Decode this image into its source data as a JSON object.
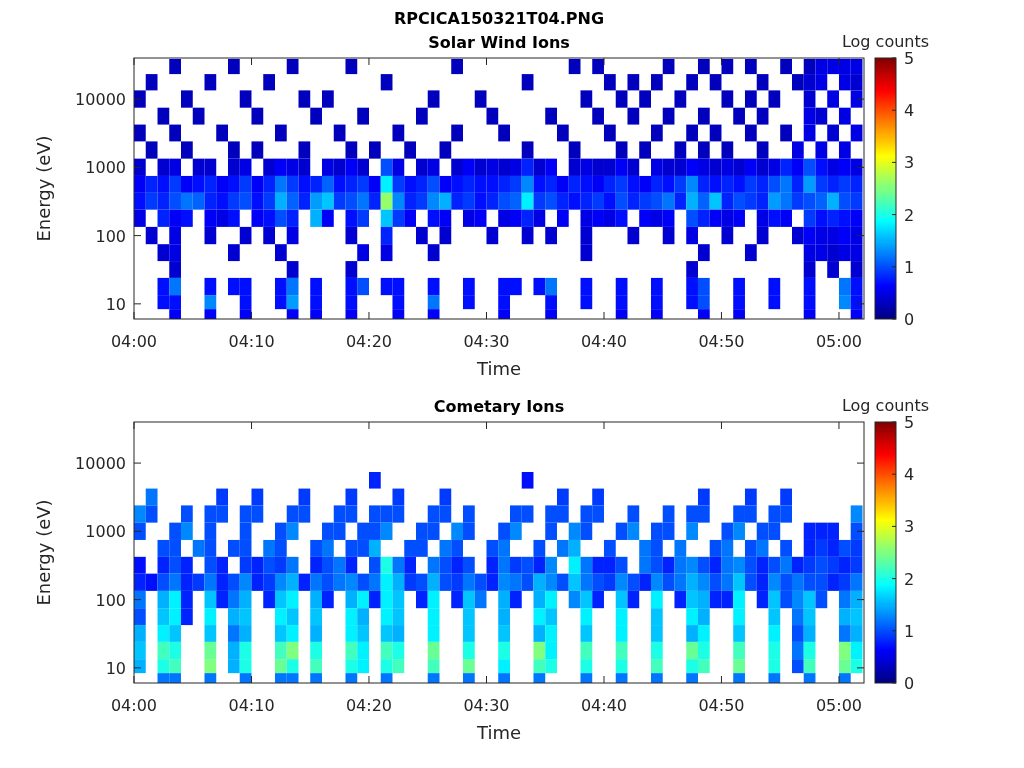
{
  "chart_data": [
    {
      "type": "heatmap",
      "title": "RPCICA150321T04.PNG",
      "subtitle": "Solar Wind Ions",
      "xlabel": "Time",
      "ylabel": "Energy (eV)",
      "clabel": "Log counts",
      "log": "y",
      "x": [
        4.0083,
        4.025,
        4.0417,
        4.0583,
        4.075,
        4.0917,
        4.1083,
        4.125,
        4.1417,
        4.1583,
        4.175,
        4.1917,
        4.2083,
        4.225,
        4.2417,
        4.2583,
        4.275,
        4.2917,
        4.3083,
        4.325,
        4.3417,
        4.3583,
        4.375,
        4.3917,
        4.4083,
        4.425,
        4.4417,
        4.4583,
        4.475,
        4.4917,
        4.5083,
        4.525,
        4.5417,
        4.5583,
        4.575,
        4.5917,
        4.6083,
        4.625,
        4.6417,
        4.6583,
        4.675,
        4.6917,
        4.7083,
        4.725,
        4.7417,
        4.7583,
        4.775,
        4.7917,
        4.8083,
        4.825,
        4.8417,
        4.8583,
        4.875,
        4.8917,
        4.9083,
        4.925,
        4.9417,
        4.9583,
        4.975,
        4.9917,
        5.0083,
        5.025
      ],
      "y": [
        30000,
        18000,
        10000,
        5600,
        3200,
        1800,
        1000,
        560,
        320,
        180,
        100,
        56,
        32,
        18,
        10,
        7
      ],
      "xlim": [
        4,
        5.0355
      ],
      "xticks": [
        {
          "value": 4,
          "label": "04:00"
        },
        {
          "value": 4.1667,
          "label": "04:10"
        },
        {
          "value": 4.3333,
          "label": "04:20"
        },
        {
          "value": 4.5,
          "label": "04:30"
        },
        {
          "value": 4.6667,
          "label": "04:40"
        },
        {
          "value": 4.8333,
          "label": "04:50"
        },
        {
          "value": 5,
          "label": "05:00"
        }
      ],
      "ylim": [
        6,
        40000
      ],
      "yticks": [
        10,
        100,
        1000,
        10000
      ],
      "clim": [
        0,
        5
      ],
      "cticks": [
        0,
        1,
        2,
        3,
        4,
        5
      ],
      "cells": [
        [
          null,
          null,
          null,
          0.3,
          null,
          null,
          null,
          null,
          0.3,
          null,
          null,
          null,
          null,
          0.3,
          null,
          null,
          null,
          null,
          0.3,
          null,
          null,
          null,
          null,
          null,
          null,
          null,
          null,
          0.3,
          null,
          null,
          null,
          null,
          null,
          null,
          null,
          null,
          null,
          0.3,
          null,
          0.3,
          null,
          null,
          null,
          null,
          null,
          0.3,
          null,
          null,
          0.3,
          null,
          0.3,
          null,
          0.3,
          null,
          null,
          0.3,
          null,
          0.3,
          0.5,
          0.5,
          0.5,
          0.5
        ],
        [
          null,
          0.3,
          null,
          null,
          null,
          null,
          0.3,
          null,
          null,
          null,
          null,
          0.3,
          null,
          null,
          null,
          null,
          null,
          null,
          null,
          null,
          null,
          0.3,
          null,
          null,
          null,
          null,
          null,
          null,
          null,
          null,
          null,
          null,
          null,
          0.3,
          null,
          null,
          null,
          null,
          null,
          null,
          0.3,
          null,
          0.3,
          null,
          0.3,
          null,
          null,
          0.3,
          null,
          0.3,
          null,
          null,
          null,
          0.3,
          null,
          null,
          0.3,
          0.4,
          0.5,
          null,
          0.5,
          0.4
        ],
        [
          0.3,
          null,
          null,
          null,
          0.3,
          null,
          null,
          null,
          null,
          0.3,
          null,
          null,
          null,
          null,
          0.3,
          null,
          0.3,
          null,
          null,
          null,
          null,
          null,
          null,
          null,
          null,
          0.3,
          null,
          null,
          null,
          0.3,
          null,
          null,
          null,
          null,
          null,
          null,
          null,
          null,
          0.3,
          null,
          null,
          0.3,
          null,
          0.3,
          null,
          null,
          0.3,
          null,
          null,
          null,
          0.3,
          null,
          0.3,
          null,
          0.3,
          null,
          null,
          0.4,
          null,
          0.5,
          null,
          0.5
        ],
        [
          null,
          null,
          0.3,
          null,
          null,
          0.3,
          null,
          null,
          null,
          null,
          0.3,
          null,
          null,
          null,
          null,
          0.3,
          null,
          null,
          null,
          0.3,
          null,
          null,
          null,
          null,
          0.3,
          null,
          null,
          null,
          null,
          null,
          0.3,
          null,
          null,
          null,
          null,
          0.3,
          null,
          null,
          null,
          0.3,
          null,
          null,
          0.3,
          null,
          null,
          0.3,
          null,
          null,
          0.3,
          null,
          null,
          0.3,
          null,
          0.3,
          null,
          null,
          null,
          0.5,
          0.4,
          null,
          0.5,
          null
        ],
        [
          0.3,
          null,
          null,
          0.3,
          null,
          null,
          null,
          0.3,
          null,
          null,
          null,
          null,
          0.3,
          null,
          null,
          null,
          null,
          0.3,
          null,
          null,
          null,
          null,
          0.3,
          null,
          null,
          null,
          null,
          0.3,
          null,
          null,
          null,
          0.3,
          null,
          null,
          null,
          null,
          0.3,
          null,
          null,
          null,
          0.3,
          null,
          null,
          null,
          0.3,
          null,
          null,
          0.3,
          null,
          0.3,
          null,
          null,
          0.3,
          null,
          null,
          0.3,
          null,
          0.5,
          null,
          0.4,
          null,
          0.5
        ],
        [
          null,
          0.3,
          null,
          null,
          0.3,
          null,
          null,
          null,
          0.3,
          null,
          0.3,
          null,
          null,
          null,
          0.3,
          null,
          null,
          null,
          0.3,
          null,
          0.3,
          null,
          null,
          0.3,
          null,
          null,
          0.3,
          null,
          null,
          null,
          null,
          null,
          null,
          0.3,
          null,
          null,
          null,
          0.3,
          null,
          null,
          null,
          0.3,
          null,
          0.3,
          null,
          null,
          0.3,
          null,
          0.3,
          null,
          0.3,
          null,
          null,
          0.3,
          null,
          null,
          0.5,
          null,
          0.5,
          null,
          0.5,
          null
        ],
        [
          0.4,
          null,
          0.4,
          0.5,
          null,
          0.4,
          0.4,
          null,
          0.4,
          0.5,
          null,
          0.4,
          0.6,
          0.5,
          0.4,
          null,
          0.5,
          0.4,
          0.6,
          0.4,
          null,
          1.0,
          0.5,
          null,
          0.4,
          0.5,
          null,
          0.4,
          0.6,
          0.4,
          0.5,
          0.4,
          0.5,
          0.8,
          0.4,
          0.6,
          null,
          0.4,
          0.5,
          0.4,
          0.4,
          0.6,
          0.4,
          null,
          0.5,
          0.4,
          0.4,
          0.6,
          0.5,
          0.4,
          0.5,
          0.4,
          0.6,
          0.4,
          0.5,
          0.8,
          0.6,
          1.0,
          0.7,
          0.5,
          0.6,
          0.5
        ],
        [
          0.6,
          0.8,
          0.7,
          0.9,
          0.6,
          0.7,
          0.8,
          0.6,
          0.7,
          0.9,
          0.6,
          0.8,
          1.2,
          0.9,
          0.7,
          0.8,
          1.1,
          0.7,
          0.8,
          0.9,
          0.6,
          1.8,
          0.9,
          0.7,
          0.8,
          1.0,
          0.6,
          0.7,
          0.8,
          0.7,
          0.7,
          0.8,
          0.9,
          1.3,
          0.7,
          0.8,
          0.6,
          0.8,
          0.7,
          0.6,
          0.8,
          0.9,
          0.7,
          0.6,
          0.8,
          0.7,
          0.9,
          1.3,
          0.8,
          0.7,
          0.8,
          0.7,
          0.9,
          0.8,
          1.0,
          1.2,
          0.8,
          1.4,
          0.9,
          0.8,
          0.9,
          0.8
        ],
        [
          0.7,
          0.9,
          0.8,
          1.0,
          1.2,
          1.1,
          0.8,
          0.7,
          0.9,
          1.0,
          0.7,
          0.9,
          1.5,
          1.1,
          0.8,
          1.4,
          1.6,
          0.9,
          1.0,
          1.2,
          0.8,
          2.6,
          1.3,
          0.8,
          0.9,
          1.3,
          1.5,
          0.8,
          0.9,
          0.7,
          0.8,
          1.0,
          1.1,
          1.8,
          0.9,
          1.0,
          0.8,
          0.7,
          0.8,
          0.9,
          0.7,
          1.0,
          0.8,
          0.9,
          1.0,
          1.2,
          0.8,
          1.5,
          1.1,
          1.6,
          0.8,
          1.0,
          0.9,
          0.8,
          1.4,
          1.2,
          0.9,
          1.0,
          1.1,
          1.5,
          1.0,
          0.9
        ],
        [
          0.5,
          null,
          0.8,
          0.6,
          0.7,
          null,
          0.6,
          0.5,
          0.7,
          null,
          0.6,
          0.7,
          1.0,
          0.8,
          null,
          1.5,
          0.6,
          null,
          0.7,
          0.9,
          null,
          1.6,
          0.9,
          0.6,
          null,
          0.7,
          0.6,
          null,
          0.5,
          0.6,
          null,
          0.5,
          0.6,
          0.8,
          0.5,
          null,
          0.6,
          null,
          0.5,
          0.6,
          0.5,
          0.7,
          null,
          0.6,
          0.5,
          0.6,
          null,
          1.0,
          0.8,
          0.6,
          0.5,
          0.6,
          null,
          0.5,
          0.7,
          0.6,
          null,
          0.9,
          0.7,
          0.8,
          0.7,
          0.6
        ],
        [
          null,
          0.4,
          null,
          0.5,
          null,
          null,
          0.4,
          null,
          null,
          0.4,
          null,
          0.4,
          null,
          0.5,
          null,
          null,
          null,
          null,
          0.4,
          null,
          null,
          0.8,
          null,
          null,
          0.4,
          null,
          0.4,
          null,
          null,
          null,
          0.4,
          null,
          null,
          0.4,
          null,
          0.4,
          null,
          null,
          0.4,
          null,
          null,
          null,
          0.4,
          null,
          null,
          0.4,
          null,
          0.5,
          null,
          null,
          0.4,
          null,
          null,
          0.4,
          null,
          null,
          0.4,
          0.6,
          0.5,
          0.5,
          0.6,
          0.5
        ],
        [
          null,
          null,
          0.4,
          0.5,
          null,
          null,
          null,
          null,
          0.4,
          null,
          null,
          null,
          0.4,
          null,
          null,
          null,
          null,
          null,
          null,
          0.5,
          null,
          0.5,
          null,
          null,
          null,
          0.4,
          null,
          null,
          null,
          null,
          null,
          null,
          null,
          null,
          null,
          null,
          null,
          null,
          0.4,
          null,
          null,
          null,
          null,
          null,
          null,
          null,
          null,
          null,
          0.4,
          null,
          null,
          null,
          0.4,
          null,
          null,
          null,
          null,
          0.5,
          0.5,
          0.4,
          0.5,
          0.5
        ],
        [
          null,
          null,
          null,
          0.4,
          null,
          null,
          null,
          null,
          null,
          null,
          null,
          null,
          null,
          0.4,
          null,
          null,
          null,
          null,
          0.4,
          null,
          null,
          null,
          null,
          null,
          null,
          null,
          null,
          null,
          null,
          null,
          null,
          null,
          null,
          null,
          null,
          null,
          null,
          null,
          null,
          null,
          null,
          null,
          null,
          null,
          null,
          null,
          null,
          0.4,
          null,
          null,
          null,
          null,
          null,
          null,
          null,
          null,
          null,
          0.4,
          null,
          0.4,
          null,
          0.4
        ],
        [
          null,
          null,
          0.7,
          1.2,
          null,
          null,
          0.7,
          null,
          0.7,
          0.7,
          null,
          null,
          0.7,
          1.2,
          null,
          0.7,
          null,
          null,
          0.7,
          1.0,
          null,
          0.7,
          0.7,
          null,
          null,
          0.7,
          null,
          null,
          0.7,
          null,
          null,
          0.7,
          0.7,
          null,
          0.7,
          1.2,
          null,
          null,
          0.7,
          null,
          null,
          0.7,
          null,
          null,
          0.7,
          null,
          null,
          0.7,
          1.0,
          null,
          null,
          0.7,
          null,
          null,
          0.7,
          null,
          null,
          0.7,
          null,
          null,
          1.2,
          0.7
        ],
        [
          null,
          null,
          0.7,
          0.7,
          null,
          null,
          1.3,
          null,
          null,
          0.7,
          null,
          null,
          0.7,
          1.4,
          null,
          0.7,
          null,
          null,
          0.7,
          null,
          null,
          null,
          0.7,
          null,
          null,
          1.2,
          null,
          null,
          0.7,
          null,
          null,
          0.7,
          null,
          null,
          null,
          0.7,
          null,
          null,
          0.7,
          null,
          null,
          0.7,
          null,
          null,
          0.7,
          null,
          null,
          0.7,
          1.0,
          null,
          null,
          0.7,
          null,
          null,
          0.7,
          null,
          null,
          0.7,
          null,
          null,
          1.3,
          0.7
        ],
        [
          null,
          null,
          null,
          0.6,
          null,
          null,
          0.6,
          null,
          null,
          0.6,
          null,
          null,
          null,
          0.6,
          null,
          0.6,
          null,
          null,
          0.6,
          null,
          null,
          null,
          0.6,
          null,
          null,
          0.6,
          null,
          null,
          null,
          null,
          null,
          0.6,
          null,
          null,
          null,
          0.6,
          null,
          null,
          null,
          null,
          null,
          0.6,
          null,
          null,
          0.6,
          null,
          null,
          null,
          0.6,
          null,
          null,
          0.6,
          null,
          null,
          null,
          null,
          null,
          0.6,
          null,
          null,
          null,
          0.6
        ]
      ]
    },
    {
      "type": "heatmap",
      "title": "Cometary Ions",
      "xlabel": "Time",
      "ylabel": "Energy (eV)",
      "clabel": "Log counts",
      "log": "y",
      "x": [
        4.0083,
        4.025,
        4.0417,
        4.0583,
        4.075,
        4.0917,
        4.1083,
        4.125,
        4.1417,
        4.1583,
        4.175,
        4.1917,
        4.2083,
        4.225,
        4.2417,
        4.2583,
        4.275,
        4.2917,
        4.3083,
        4.325,
        4.3417,
        4.3583,
        4.375,
        4.3917,
        4.4083,
        4.425,
        4.4417,
        4.4583,
        4.475,
        4.4917,
        4.5083,
        4.525,
        4.5417,
        4.5583,
        4.575,
        4.5917,
        4.6083,
        4.625,
        4.6417,
        4.6583,
        4.675,
        4.6917,
        4.7083,
        4.725,
        4.7417,
        4.7583,
        4.775,
        4.7917,
        4.8083,
        4.825,
        4.8417,
        4.8583,
        4.875,
        4.8917,
        4.9083,
        4.925,
        4.9417,
        4.9583,
        4.975,
        4.9917,
        5.0083,
        5.025
      ],
      "y": [
        5600,
        3200,
        1800,
        1000,
        560,
        320,
        180,
        100,
        56,
        32,
        18,
        10,
        7
      ],
      "xlim": [
        4,
        5.0355
      ],
      "xticks": [
        {
          "value": 4,
          "label": "04:00"
        },
        {
          "value": 4.1667,
          "label": "04:10"
        },
        {
          "value": 4.3333,
          "label": "04:20"
        },
        {
          "value": 4.5,
          "label": "04:30"
        },
        {
          "value": 4.6667,
          "label": "04:40"
        },
        {
          "value": 4.8333,
          "label": "04:50"
        },
        {
          "value": 5,
          "label": "05:00"
        }
      ],
      "ylim": [
        6,
        40000
      ],
      "yticks": [
        10,
        100,
        1000,
        10000
      ],
      "clim": [
        0,
        5
      ],
      "cticks": [
        0,
        1,
        2,
        3,
        4,
        5
      ],
      "cells": [
        [
          null,
          null,
          null,
          null,
          null,
          null,
          null,
          null,
          null,
          null,
          null,
          null,
          null,
          null,
          null,
          null,
          null,
          null,
          null,
          null,
          0.8,
          null,
          null,
          null,
          null,
          null,
          null,
          null,
          null,
          null,
          null,
          null,
          null,
          0.7,
          null,
          null,
          null,
          null,
          null,
          null,
          null,
          null,
          null,
          null,
          null,
          null,
          null,
          null,
          null,
          null,
          null,
          null,
          null,
          null,
          null,
          null,
          null,
          null,
          null,
          null,
          null,
          null
        ],
        [
          null,
          1.2,
          null,
          null,
          null,
          null,
          null,
          0.9,
          null,
          null,
          0.9,
          null,
          null,
          null,
          0.9,
          null,
          null,
          null,
          0.9,
          null,
          null,
          null,
          0.9,
          null,
          null,
          null,
          0.9,
          null,
          null,
          null,
          null,
          null,
          null,
          null,
          null,
          null,
          0.9,
          null,
          null,
          0.9,
          null,
          null,
          null,
          null,
          null,
          null,
          null,
          null,
          0.9,
          null,
          null,
          null,
          0.9,
          null,
          null,
          0.9,
          null,
          null,
          null,
          null,
          null,
          null
        ],
        [
          1.3,
          1.0,
          null,
          null,
          1.0,
          null,
          1.0,
          1.0,
          null,
          1.0,
          1.0,
          null,
          null,
          1.0,
          1.0,
          null,
          null,
          1.0,
          1.0,
          null,
          1.0,
          1.0,
          1.0,
          null,
          null,
          1.0,
          1.0,
          null,
          1.0,
          null,
          null,
          null,
          1.0,
          1.0,
          null,
          1.0,
          1.0,
          null,
          1.0,
          1.0,
          null,
          null,
          1.0,
          null,
          null,
          1.0,
          null,
          1.0,
          1.0,
          null,
          null,
          1.0,
          1.0,
          null,
          1.0,
          1.0,
          null,
          null,
          null,
          null,
          null,
          1.3
        ],
        [
          1.0,
          null,
          null,
          1.0,
          1.3,
          null,
          1.0,
          null,
          null,
          1.0,
          null,
          null,
          1.0,
          1.3,
          null,
          null,
          1.0,
          1.0,
          null,
          1.0,
          1.0,
          1.3,
          null,
          null,
          1.0,
          1.0,
          null,
          1.3,
          1.0,
          null,
          null,
          1.0,
          1.3,
          null,
          null,
          1.0,
          null,
          1.3,
          1.0,
          null,
          null,
          1.0,
          1.3,
          null,
          1.0,
          1.0,
          null,
          1.3,
          null,
          null,
          1.0,
          1.3,
          null,
          1.0,
          1.0,
          null,
          null,
          0.8,
          0.8,
          0.8,
          null,
          1.0
        ],
        [
          null,
          null,
          1.0,
          1.0,
          null,
          1.2,
          1.0,
          null,
          1.0,
          1.0,
          null,
          1.2,
          1.0,
          null,
          null,
          1.0,
          1.2,
          null,
          1.0,
          1.0,
          1.5,
          null,
          null,
          1.0,
          1.0,
          null,
          1.2,
          1.0,
          null,
          null,
          1.0,
          1.2,
          null,
          null,
          1.0,
          null,
          1.2,
          1.5,
          null,
          null,
          1.0,
          null,
          null,
          1.2,
          1.0,
          null,
          1.2,
          null,
          null,
          1.0,
          1.2,
          null,
          1.0,
          1.2,
          null,
          1.0,
          null,
          0.8,
          0.9,
          0.8,
          1.0,
          0.9
        ],
        [
          0.7,
          null,
          0.8,
          1.0,
          0.8,
          null,
          1.0,
          0.8,
          null,
          0.9,
          0.8,
          1.0,
          0.9,
          1.2,
          null,
          0.8,
          1.0,
          1.2,
          0.8,
          null,
          1.0,
          2.0,
          1.2,
          0.8,
          null,
          1.2,
          1.0,
          0.8,
          1.0,
          null,
          0.8,
          1.2,
          0.9,
          1.0,
          0.8,
          1.3,
          null,
          1.8,
          1.2,
          0.8,
          0.8,
          1.0,
          null,
          1.2,
          1.0,
          0.8,
          1.2,
          1.3,
          1.0,
          0.8,
          1.2,
          1.3,
          1.0,
          0.8,
          1.0,
          1.2,
          0.8,
          0.9,
          1.0,
          0.9,
          0.8,
          0.9
        ],
        [
          0.8,
          0.7,
          1.0,
          1.2,
          0.8,
          0.9,
          1.2,
          0.8,
          1.0,
          1.3,
          0.8,
          0.9,
          1.3,
          1.5,
          0.8,
          1.2,
          1.0,
          1.2,
          1.3,
          1.0,
          1.2,
          1.8,
          1.5,
          0.9,
          1.0,
          1.5,
          1.0,
          0.9,
          1.2,
          1.0,
          0.8,
          1.3,
          1.2,
          1.0,
          1.5,
          1.3,
          1.0,
          1.6,
          1.2,
          1.0,
          0.9,
          1.3,
          1.0,
          0.8,
          1.3,
          1.0,
          1.2,
          1.5,
          1.3,
          1.0,
          1.2,
          1.6,
          1.0,
          0.8,
          1.3,
          1.0,
          1.2,
          1.0,
          1.0,
          0.8,
          0.9,
          1.2
        ],
        [
          1.2,
          null,
          1.5,
          1.8,
          0.8,
          null,
          1.6,
          0.8,
          1.2,
          1.5,
          null,
          0.8,
          1.6,
          1.8,
          null,
          1.5,
          0.8,
          null,
          1.5,
          1.8,
          0.8,
          1.8,
          1.6,
          null,
          0.8,
          1.8,
          null,
          0.8,
          1.6,
          1.2,
          null,
          1.5,
          0.8,
          null,
          1.5,
          1.8,
          null,
          1.3,
          1.6,
          0.8,
          null,
          1.6,
          0.8,
          null,
          1.8,
          null,
          0.8,
          1.6,
          1.5,
          0.8,
          0.8,
          1.8,
          null,
          0.8,
          1.6,
          1.0,
          1.3,
          1.6,
          1.0,
          null,
          1.2,
          1.5
        ],
        [
          1.0,
          null,
          1.6,
          1.8,
          0.8,
          null,
          1.8,
          null,
          1.5,
          1.6,
          null,
          null,
          1.8,
          1.6,
          null,
          1.6,
          null,
          null,
          1.8,
          1.5,
          null,
          1.8,
          1.6,
          null,
          null,
          1.8,
          null,
          null,
          1.6,
          null,
          null,
          1.5,
          null,
          null,
          1.8,
          1.6,
          null,
          null,
          1.8,
          null,
          null,
          1.8,
          null,
          null,
          1.6,
          null,
          null,
          1.8,
          1.5,
          null,
          null,
          1.8,
          null,
          null,
          1.6,
          null,
          1.2,
          1.6,
          null,
          null,
          1.5,
          1.6
        ],
        [
          1.5,
          null,
          1.8,
          1.6,
          null,
          null,
          1.6,
          null,
          1.2,
          1.5,
          null,
          null,
          1.6,
          1.8,
          null,
          1.5,
          null,
          null,
          1.8,
          1.6,
          null,
          1.6,
          1.5,
          null,
          null,
          1.8,
          null,
          null,
          1.6,
          null,
          null,
          1.6,
          null,
          null,
          1.5,
          1.8,
          null,
          null,
          1.6,
          null,
          null,
          1.8,
          null,
          null,
          1.6,
          null,
          null,
          1.5,
          1.8,
          null,
          null,
          1.6,
          null,
          null,
          1.8,
          null,
          1.0,
          1.5,
          null,
          null,
          1.2,
          1.5
        ],
        [
          1.6,
          null,
          2.2,
          2.0,
          null,
          null,
          2.4,
          null,
          1.5,
          2.0,
          null,
          null,
          2.2,
          2.5,
          null,
          2.0,
          null,
          null,
          2.2,
          1.8,
          null,
          2.2,
          2.0,
          null,
          null,
          2.4,
          null,
          null,
          2.0,
          null,
          null,
          2.0,
          null,
          null,
          2.5,
          1.8,
          null,
          null,
          2.2,
          null,
          null,
          2.2,
          null,
          null,
          2.0,
          null,
          null,
          2.4,
          2.0,
          null,
          null,
          2.2,
          null,
          null,
          2.0,
          null,
          1.2,
          2.0,
          null,
          null,
          2.5,
          1.8
        ],
        [
          1.5,
          null,
          2.0,
          2.2,
          null,
          null,
          2.5,
          null,
          1.5,
          2.0,
          null,
          null,
          2.4,
          2.0,
          null,
          2.2,
          null,
          null,
          2.0,
          1.8,
          null,
          2.0,
          2.2,
          null,
          null,
          2.2,
          null,
          null,
          2.4,
          null,
          null,
          1.8,
          null,
          null,
          2.2,
          2.0,
          null,
          null,
          2.0,
          null,
          null,
          2.0,
          null,
          null,
          2.2,
          null,
          null,
          2.0,
          2.2,
          null,
          null,
          2.4,
          null,
          null,
          2.0,
          null,
          1.0,
          2.2,
          null,
          null,
          2.4,
          2.0
        ],
        [
          null,
          null,
          1.2,
          1.2,
          null,
          null,
          1.2,
          null,
          null,
          1.2,
          null,
          null,
          1.2,
          1.2,
          null,
          1.2,
          null,
          null,
          1.2,
          null,
          null,
          1.2,
          null,
          null,
          null,
          1.2,
          null,
          null,
          1.2,
          null,
          null,
          1.2,
          null,
          null,
          1.2,
          null,
          null,
          null,
          1.2,
          null,
          null,
          1.2,
          null,
          null,
          1.2,
          null,
          null,
          1.2,
          null,
          null,
          null,
          1.2,
          null,
          null,
          1.2,
          null,
          null,
          1.2,
          null,
          null,
          1.2,
          null
        ]
      ]
    }
  ]
}
